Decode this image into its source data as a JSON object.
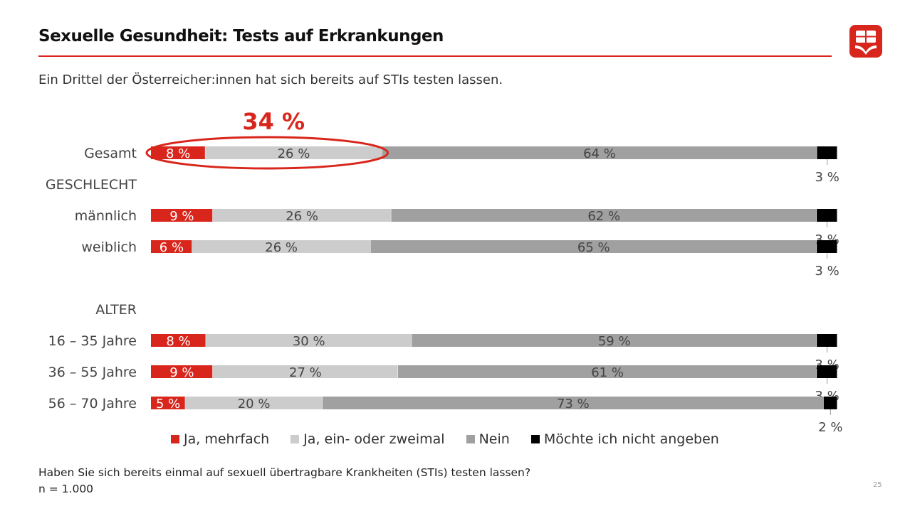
{
  "header": {
    "title": "Sexuelle Gesundheit: Tests auf Erkrankungen",
    "subtitle": "Ein Drittel der Österreicher:innen hat sich bereits auf STIs testen lassen."
  },
  "footer": {
    "question": "Haben Sie sich bereits einmal auf sexuell übertragbare Krankheiten (STIs) testen lassen?",
    "sample": "n = 1.000",
    "page_number": "25"
  },
  "colors": {
    "accent": "#d9261c",
    "ja_mehrfach": "#d9261c",
    "ja_einmal": "#cccccc",
    "nein": "#a0a0a0",
    "keine_angabe": "#000000"
  },
  "chart_data": {
    "type": "bar",
    "orientation": "horizontal",
    "stacked": true,
    "highlight": {
      "label": "34 %",
      "category": "Gesamt"
    },
    "groups": [
      "GESCHLECHT",
      "ALTER"
    ],
    "categories": [
      "Gesamt",
      "männlich",
      "weiblich",
      "16 – 35 Jahre",
      "36 – 55 Jahre",
      "56 – 70 Jahre"
    ],
    "series": [
      {
        "name": "Ja, mehrfach",
        "values": [
          8,
          9,
          6,
          8,
          9,
          5
        ],
        "labels": [
          "8 %",
          "9 %",
          "6 %",
          "8 %",
          "9 %",
          "5 %"
        ]
      },
      {
        "name": "Ja, ein- oder zweimal",
        "values": [
          26,
          26,
          26,
          30,
          27,
          20
        ],
        "labels": [
          "26 %",
          "26 %",
          "26 %",
          "30 %",
          "27 %",
          "20 %"
        ]
      },
      {
        "name": "Nein",
        "values": [
          64,
          62,
          65,
          59,
          61,
          73
        ],
        "labels": [
          "64 %",
          "62 %",
          "65 %",
          "59 %",
          "61 %",
          "73 %"
        ]
      },
      {
        "name": "Möchte ich nicht angeben",
        "values": [
          3,
          3,
          3,
          3,
          3,
          2
        ],
        "labels": [
          "3 %",
          "3 %",
          "3 %",
          "3 %",
          "3 %",
          "2 %"
        ]
      }
    ]
  }
}
